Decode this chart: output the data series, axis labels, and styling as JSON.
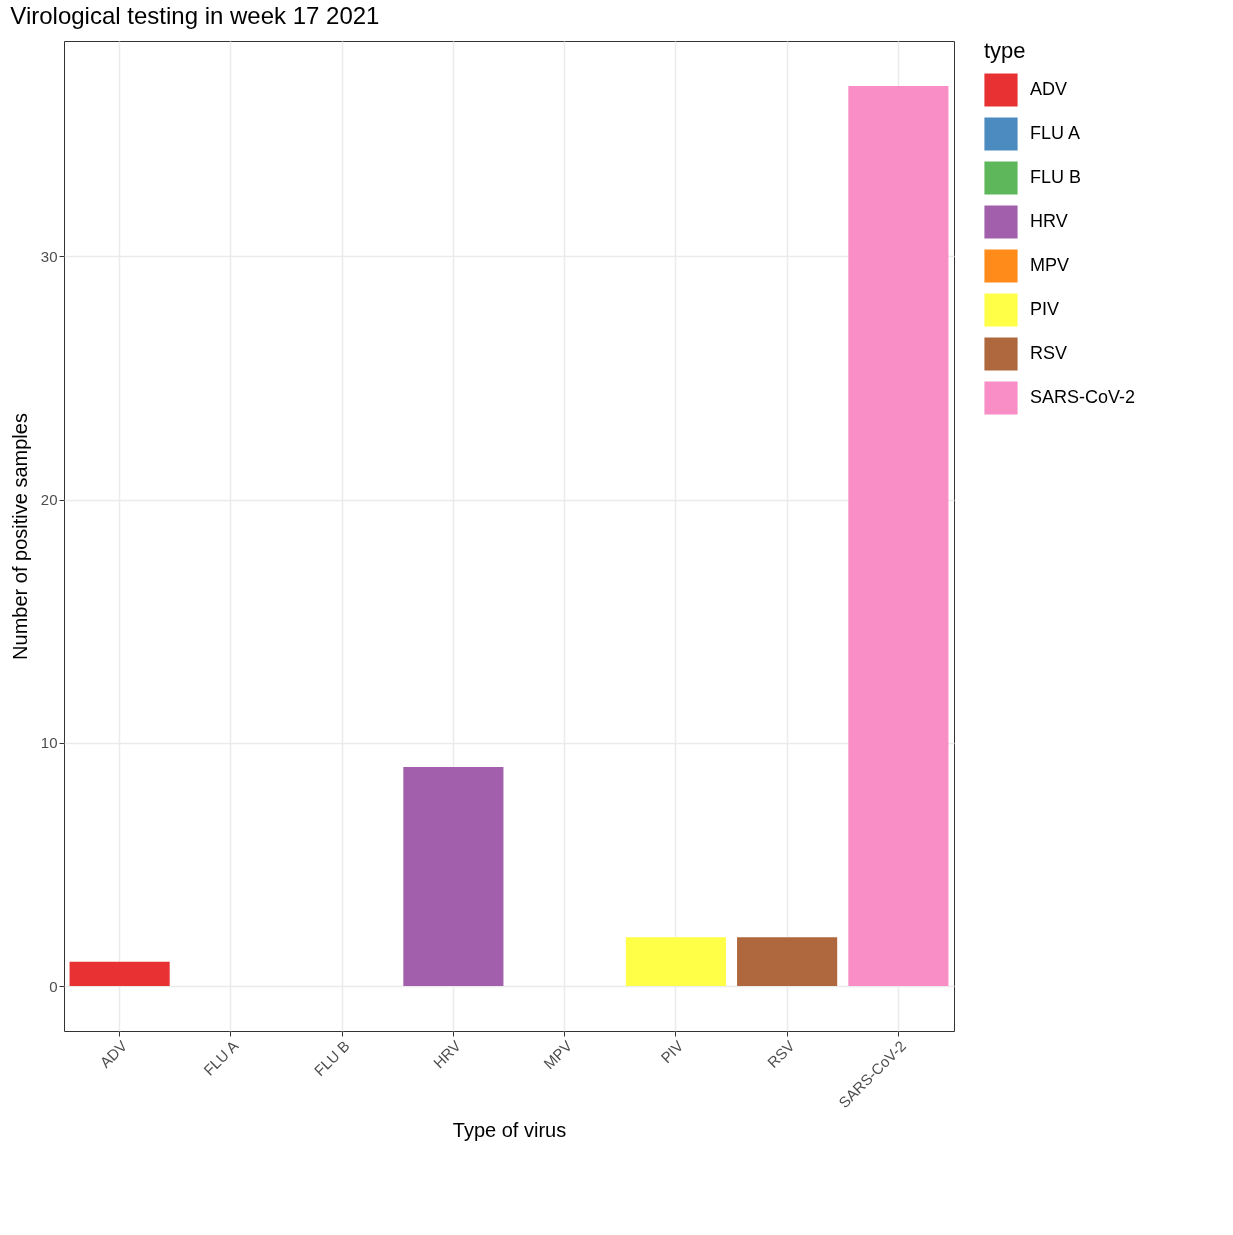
{
  "chart_data": {
    "type": "bar",
    "title": "Virological testing in week  17 2021",
    "xlabel": "Type of virus",
    "ylabel": "Number of positive samples",
    "legend_title": "type",
    "categories": [
      "ADV",
      "FLU A",
      "FLU B",
      "HRV",
      "MPV",
      "PIV",
      "RSV",
      "SARS-CoV-2"
    ],
    "series": [
      {
        "name": "ADV",
        "color": "#e73133",
        "values": [
          1,
          null,
          null,
          null,
          null,
          null,
          null,
          null
        ]
      },
      {
        "name": "FLU A",
        "color": "#4b8bbf",
        "values": [
          null,
          0,
          null,
          null,
          null,
          null,
          null,
          null
        ]
      },
      {
        "name": "FLU B",
        "color": "#5fb75c",
        "values": [
          null,
          null,
          0,
          null,
          null,
          null,
          null,
          null
        ]
      },
      {
        "name": "HRV",
        "color": "#a260ac",
        "values": [
          null,
          null,
          null,
          9,
          null,
          null,
          null,
          null
        ]
      },
      {
        "name": "MPV",
        "color": "#ff8c1a",
        "values": [
          null,
          null,
          null,
          null,
          0,
          null,
          null,
          null
        ]
      },
      {
        "name": "PIV",
        "color": "#ffff47",
        "values": [
          null,
          null,
          null,
          null,
          null,
          2,
          null,
          null
        ]
      },
      {
        "name": "RSV",
        "color": "#af673e",
        "values": [
          null,
          null,
          null,
          null,
          null,
          null,
          2,
          null
        ]
      },
      {
        "name": "SARS-CoV-2",
        "color": "#f88ec5",
        "values": [
          null,
          null,
          null,
          null,
          null,
          null,
          null,
          37
        ]
      }
    ],
    "ylim": [
      -1.85,
      38.85
    ],
    "yticks": [
      0,
      10,
      20,
      30
    ],
    "grid": true,
    "legend": "right"
  }
}
